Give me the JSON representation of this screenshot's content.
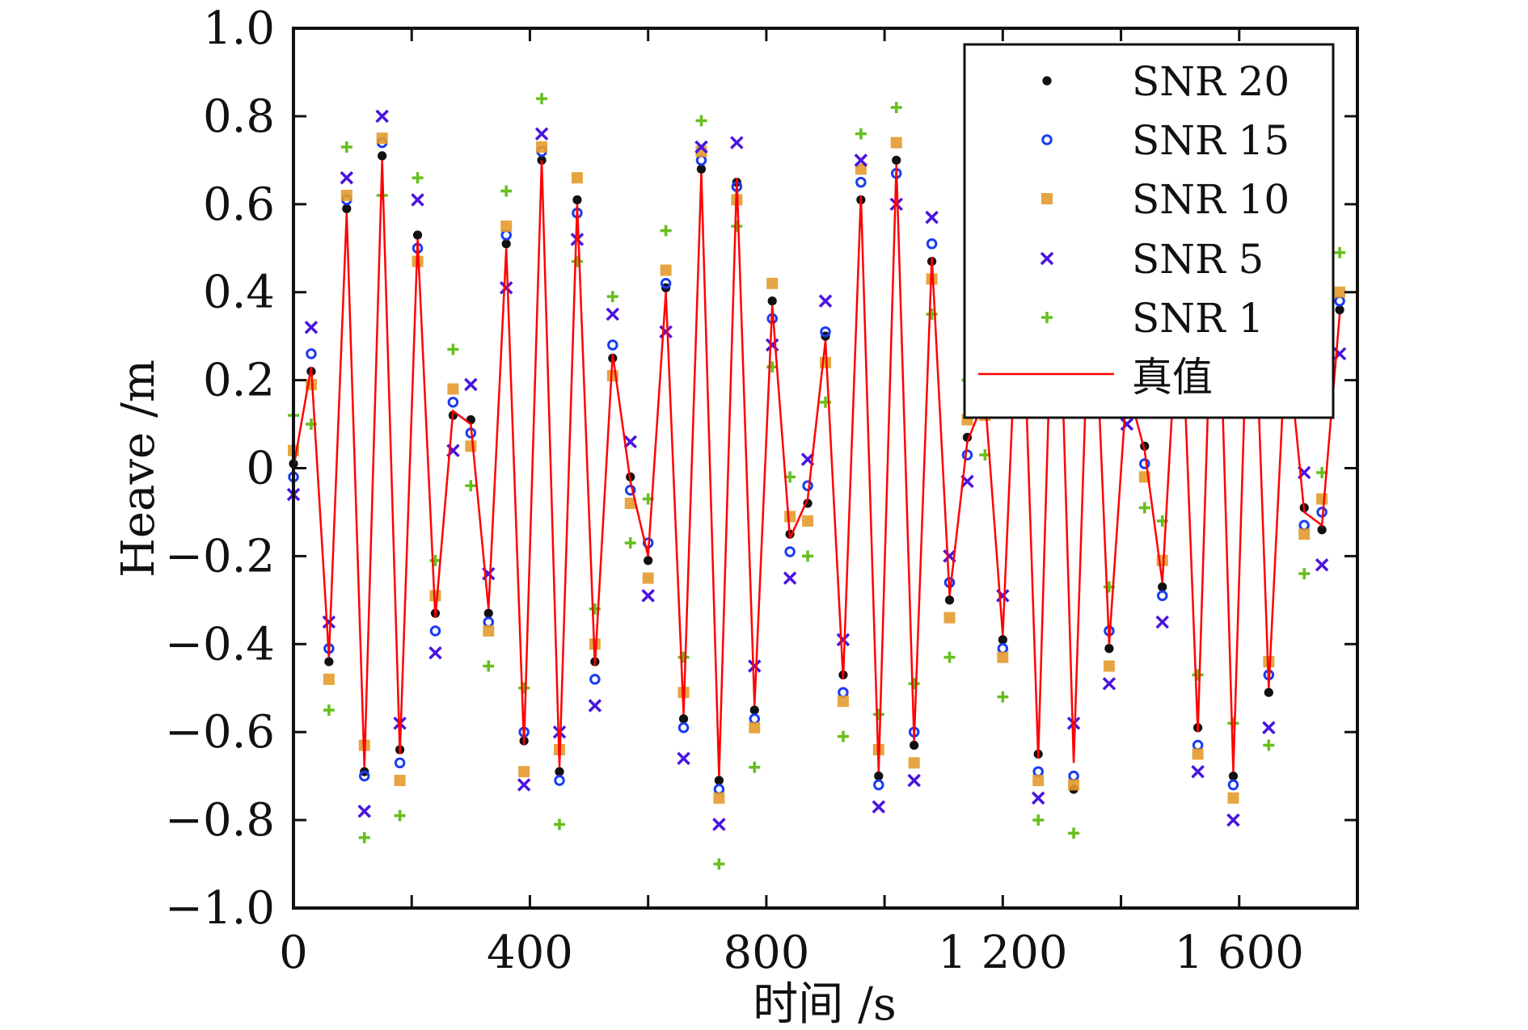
{
  "chart_data": {
    "type": "scatter",
    "title": "",
    "xlabel": "时间 /s",
    "ylabel": "Heave /m",
    "xlim": [
      0,
      1800
    ],
    "ylim": [
      -1.0,
      1.0
    ],
    "x_ticks": [
      0,
      200,
      400,
      600,
      800,
      1000,
      1200,
      1400,
      1600,
      1800
    ],
    "x_tick_labels": [
      {
        "value": 0,
        "label": "0"
      },
      {
        "value": 400,
        "label": "400"
      },
      {
        "value": 800,
        "label": "800"
      },
      {
        "value": 1200,
        "label": "1 200"
      },
      {
        "value": 1600,
        "label": "1 600"
      }
    ],
    "y_tick_labels": [
      {
        "value": 1.0,
        "label": "1.0"
      },
      {
        "value": 0.8,
        "label": "0.8"
      },
      {
        "value": 0.6,
        "label": "0.6"
      },
      {
        "value": 0.4,
        "label": "0.4"
      },
      {
        "value": 0.2,
        "label": "0.2"
      },
      {
        "value": 0,
        "label": "0"
      },
      {
        "value": -0.2,
        "label": "−0.2"
      },
      {
        "value": -0.4,
        "label": "−0.4"
      },
      {
        "value": -0.6,
        "label": "−0.6"
      },
      {
        "value": -0.8,
        "label": "−0.8"
      },
      {
        "value": -1.0,
        "label": "−1.0"
      }
    ],
    "grid": false,
    "legend_position": "top-right",
    "x": [
      0,
      30,
      60,
      90,
      120,
      150,
      180,
      210,
      240,
      270,
      300,
      330,
      360,
      390,
      420,
      450,
      480,
      510,
      540,
      570,
      600,
      630,
      660,
      690,
      720,
      750,
      780,
      810,
      840,
      870,
      900,
      930,
      960,
      990,
      1020,
      1050,
      1080,
      1110,
      1140,
      1170,
      1200,
      1230,
      1260,
      1290,
      1320,
      1350,
      1380,
      1410,
      1440,
      1470,
      1500,
      1530,
      1560,
      1590,
      1620,
      1650,
      1680,
      1710,
      1740,
      1770
    ],
    "series": [
      {
        "name": "SNR 20",
        "kind": "marker",
        "marker": "filled-circle",
        "color": "#111111",
        "values": [
          0.01,
          0.22,
          -0.44,
          0.59,
          -0.69,
          0.71,
          -0.64,
          0.53,
          -0.33,
          0.12,
          0.11,
          -0.33,
          0.51,
          -0.62,
          0.7,
          -0.69,
          0.61,
          -0.44,
          0.25,
          -0.02,
          -0.21,
          0.41,
          -0.57,
          0.68,
          -0.71,
          0.65,
          -0.55,
          0.38,
          -0.15,
          -0.08,
          0.3,
          -0.47,
          0.61,
          -0.7,
          0.7,
          -0.63,
          0.47,
          -0.3,
          0.07,
          0.15,
          -0.39,
          0.56,
          -0.65,
          0.71,
          -0.73,
          0.57,
          -0.41,
          0.18,
          0.05,
          -0.27,
          0.46,
          -0.59,
          0.7,
          -0.7,
          0.62,
          -0.51,
          0.32,
          -0.09,
          -0.14,
          0.36
        ]
      },
      {
        "name": "SNR 15",
        "kind": "marker",
        "marker": "open-circle",
        "color": "#1a3cf0",
        "values": [
          -0.02,
          0.26,
          -0.41,
          0.61,
          -0.7,
          0.74,
          -0.67,
          0.5,
          -0.37,
          0.15,
          0.08,
          -0.35,
          0.53,
          -0.6,
          0.72,
          -0.71,
          0.58,
          -0.48,
          0.28,
          -0.05,
          -0.17,
          0.42,
          -0.59,
          0.7,
          -0.73,
          0.64,
          -0.57,
          0.34,
          -0.19,
          -0.04,
          0.31,
          -0.51,
          0.65,
          -0.72,
          0.67,
          -0.6,
          0.51,
          -0.26,
          0.03,
          0.19,
          -0.41,
          0.53,
          -0.69,
          0.72,
          -0.7,
          0.59,
          -0.37,
          0.22,
          0.01,
          -0.29,
          0.47,
          -0.63,
          0.71,
          -0.72,
          0.66,
          -0.47,
          0.33,
          -0.13,
          -0.1,
          0.38
        ]
      },
      {
        "name": "SNR 10",
        "kind": "marker",
        "marker": "square",
        "color": "#e39b2d",
        "values": [
          0.04,
          0.19,
          -0.48,
          0.62,
          -0.63,
          0.75,
          -0.71,
          0.47,
          -0.29,
          0.18,
          0.05,
          -0.37,
          0.55,
          -0.69,
          0.73,
          -0.64,
          0.66,
          -0.4,
          0.21,
          -0.08,
          -0.25,
          0.45,
          -0.51,
          0.72,
          -0.75,
          0.61,
          -0.59,
          0.42,
          -0.11,
          -0.12,
          0.24,
          -0.53,
          0.68,
          -0.64,
          0.74,
          -0.67,
          0.43,
          -0.34,
          0.11,
          0.12,
          -0.43,
          0.6,
          -0.71,
          0.65,
          -0.72,
          0.51,
          -0.45,
          0.25,
          -0.02,
          -0.21,
          0.5,
          -0.65,
          0.64,
          -0.75,
          0.68,
          -0.44,
          0.27,
          -0.15,
          -0.07,
          0.4
        ]
      },
      {
        "name": "SNR 5",
        "kind": "marker",
        "marker": "x",
        "color": "#4a14e0",
        "values": [
          -0.06,
          0.32,
          -0.35,
          0.66,
          -0.78,
          0.8,
          -0.58,
          0.61,
          -0.42,
          0.04,
          0.19,
          -0.24,
          0.41,
          -0.72,
          0.76,
          -0.6,
          0.52,
          -0.54,
          0.35,
          0.06,
          -0.29,
          0.31,
          -0.66,
          0.73,
          -0.81,
          0.74,
          -0.45,
          0.28,
          -0.25,
          0.02,
          0.38,
          -0.39,
          0.7,
          -0.77,
          0.6,
          -0.71,
          0.57,
          -0.2,
          -0.03,
          0.25,
          -0.29,
          0.64,
          -0.75,
          0.78,
          -0.58,
          0.65,
          -0.49,
          0.1,
          0.13,
          -0.35,
          0.36,
          -0.69,
          0.77,
          -0.8,
          0.55,
          -0.59,
          0.4,
          -0.01,
          -0.22,
          0.26
        ]
      },
      {
        "name": "SNR 1",
        "kind": "marker",
        "marker": "plus",
        "color": "#66bf1e",
        "values": [
          0.12,
          0.1,
          -0.55,
          0.73,
          -0.84,
          0.62,
          -0.79,
          0.66,
          -0.21,
          0.27,
          -0.04,
          -0.45,
          0.63,
          -0.5,
          0.84,
          -0.81,
          0.47,
          -0.32,
          0.39,
          -0.17,
          -0.07,
          0.54,
          -0.43,
          0.79,
          -0.9,
          0.55,
          -0.68,
          0.23,
          -0.02,
          -0.2,
          0.15,
          -0.61,
          0.76,
          -0.56,
          0.82,
          -0.49,
          0.35,
          -0.43,
          0.2,
          0.03,
          -0.52,
          0.42,
          -0.8,
          0.6,
          -0.83,
          0.7,
          -0.27,
          0.33,
          -0.09,
          -0.12,
          0.58,
          -0.47,
          0.8,
          -0.58,
          0.76,
          -0.63,
          0.18,
          -0.24,
          -0.01,
          0.49
        ]
      },
      {
        "name": "真值",
        "kind": "line",
        "color": "#ff0000",
        "values": [
          0,
          0.23,
          -0.43,
          0.58,
          -0.68,
          0.7,
          -0.65,
          0.52,
          -0.34,
          0.13,
          0.1,
          -0.32,
          0.5,
          -0.63,
          0.7,
          -0.68,
          0.6,
          -0.45,
          0.26,
          -0.03,
          -0.2,
          0.4,
          -0.56,
          0.67,
          -0.7,
          0.66,
          -0.54,
          0.37,
          -0.16,
          -0.07,
          0.29,
          -0.48,
          0.62,
          -0.69,
          0.69,
          -0.62,
          0.48,
          -0.29,
          0.06,
          0.16,
          -0.38,
          0.55,
          -0.66,
          0.7,
          -0.67,
          0.56,
          -0.4,
          0.19,
          0.04,
          -0.26,
          0.45,
          -0.6,
          0.69,
          -0.69,
          0.63,
          -0.5,
          0.31,
          -0.1,
          -0.13,
          0.35
        ]
      }
    ]
  },
  "legend": {
    "entries": [
      "SNR 20",
      "SNR 15",
      "SNR 10",
      "SNR 5",
      "SNR 1",
      "真值"
    ]
  }
}
